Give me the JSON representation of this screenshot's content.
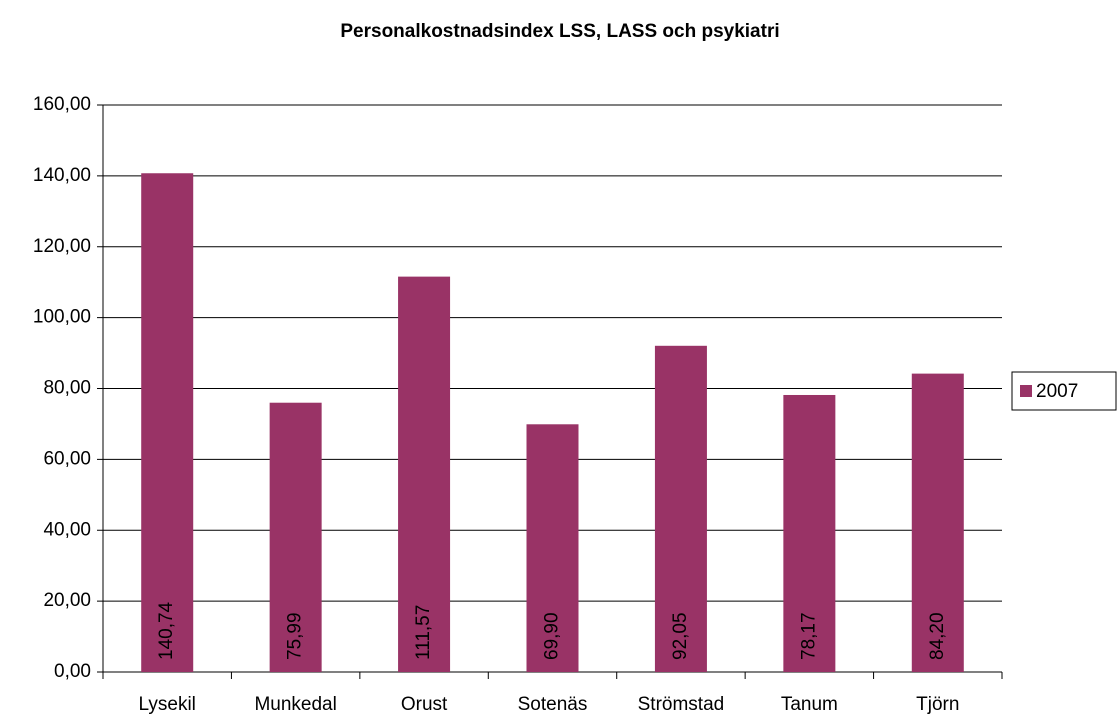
{
  "chart_data": {
    "type": "bar",
    "title": "Personalkostnadsindex LSS, LASS och psykiatri",
    "categories": [
      "Lysekil",
      "Munkedal",
      "Orust",
      "Sotenäs",
      "Strömstad",
      "Tanum",
      "Tjörn"
    ],
    "series": [
      {
        "name": "2007",
        "color": "#993366",
        "values": [
          140.74,
          75.99,
          111.57,
          69.9,
          92.05,
          78.17,
          84.2
        ],
        "value_labels": [
          "140,74",
          "75,99",
          "111,57",
          "69,90",
          "92,05",
          "78,17",
          "84,20"
        ]
      }
    ],
    "ylim": [
      0,
      160
    ],
    "yticks": [
      {
        "value": 0,
        "label": "0,00"
      },
      {
        "value": 20,
        "label": "20,00"
      },
      {
        "value": 40,
        "label": "40,00"
      },
      {
        "value": 60,
        "label": "60,00"
      },
      {
        "value": 80,
        "label": "80,00"
      },
      {
        "value": 100,
        "label": "100,00"
      },
      {
        "value": 120,
        "label": "120,00"
      },
      {
        "value": 140,
        "label": "140,00"
      },
      {
        "value": 160,
        "label": "160,00"
      }
    ],
    "grid": true,
    "legend": "right"
  }
}
